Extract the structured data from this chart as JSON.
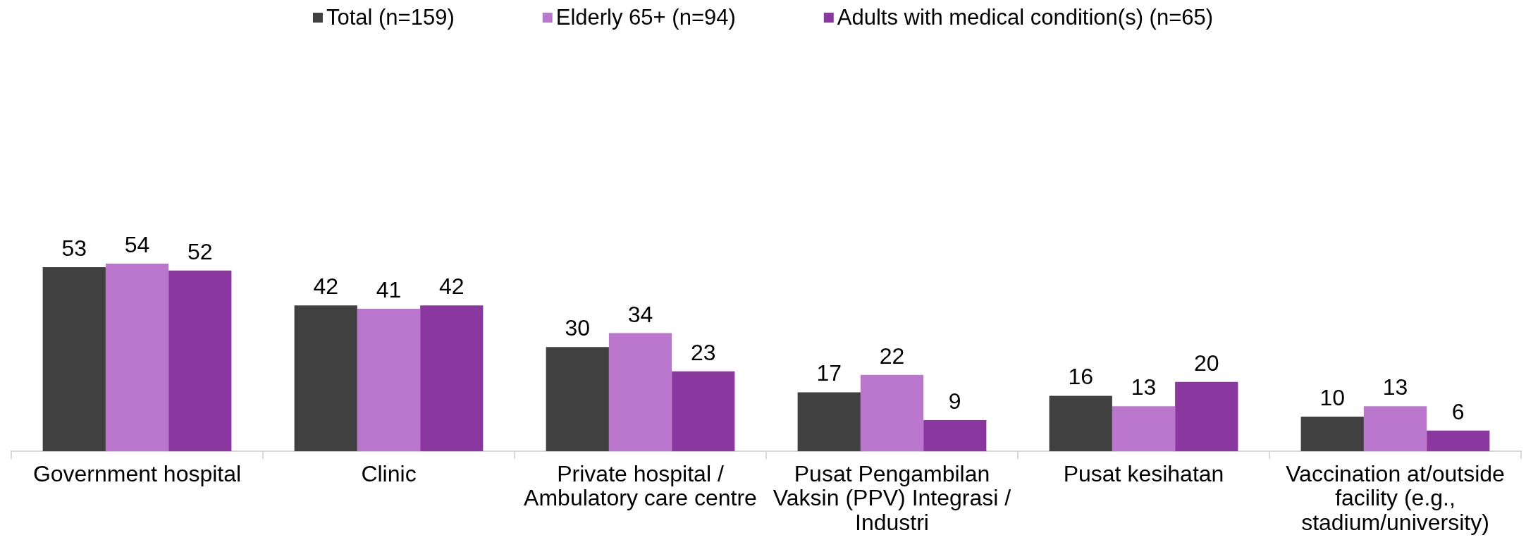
{
  "chart_data": {
    "type": "bar",
    "legend": "top",
    "data_labels": true,
    "categories": [
      "Government hospital",
      "Clinic",
      "Private hospital / Ambulatory care centre",
      "Pusat Pengambilan Vaksin (PPV) Integrasi / Industri",
      "Pusat kesihatan",
      "Vaccination at/outside facility (e.g., stadium/university)"
    ],
    "series": [
      {
        "name": "Total (n=159)",
        "color": "#404040",
        "values": [
          53,
          42,
          30,
          17,
          16,
          10
        ]
      },
      {
        "name": "Elderly 65+ (n=94)",
        "color": "#bb77ce",
        "values": [
          54,
          41,
          34,
          22,
          13,
          13
        ]
      },
      {
        "name": "Adults with medical condition(s) (n=65)",
        "color": "#8a37a0",
        "values": [
          52,
          42,
          23,
          9,
          20,
          6
        ]
      }
    ]
  }
}
